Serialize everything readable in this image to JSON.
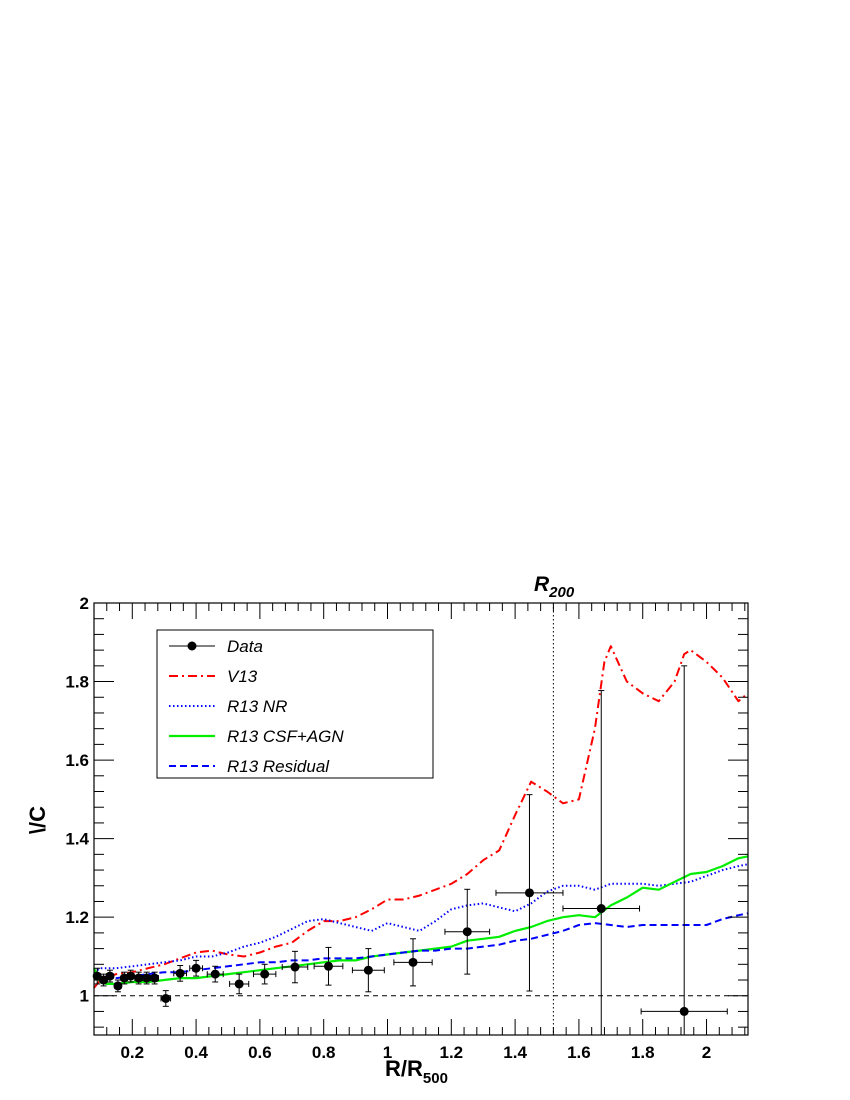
{
  "chart_data": {
    "type": "line",
    "xlabel": {
      "main": "R/R",
      "sub": "500"
    },
    "ylabel": "\\/C",
    "xlim": [
      0.08,
      2.13
    ],
    "ylim": [
      0.9,
      2.0
    ],
    "xticks": [
      "0.2",
      "0.4",
      "0.6",
      "0.8",
      "1",
      "1.2",
      "1.4",
      "1.6",
      "1.8",
      "2"
    ],
    "xtick_values": [
      0.2,
      0.4,
      0.6,
      0.8,
      1.0,
      1.2,
      1.4,
      1.6,
      1.8,
      2.0
    ],
    "yticks": [
      "1",
      "1.2",
      "1.4",
      "1.6",
      "1.8",
      "2"
    ],
    "ytick_values": [
      1.0,
      1.2,
      1.4,
      1.6,
      1.8,
      2.0
    ],
    "reference_line": {
      "y": 1.0,
      "style": "dashed"
    },
    "r200_marker": {
      "x": 1.52,
      "label_main": "R",
      "label_sub": "200"
    },
    "legend": {
      "position": "top-left",
      "entries": [
        {
          "label": "Data",
          "style": "marker-line",
          "color": "#000000"
        },
        {
          "label": "V13",
          "style": "dashdot",
          "color": "#ff0000"
        },
        {
          "label": "R13 NR",
          "style": "dotted",
          "color": "#0000ff"
        },
        {
          "label": "R13 CSF+AGN",
          "style": "solid",
          "color": "#00ee00"
        },
        {
          "label": "R13 Residual",
          "style": "dashed",
          "color": "#0000ff"
        }
      ]
    },
    "data_points": [
      {
        "x": 0.09,
        "y": 1.05,
        "xerr": 0.01,
        "yerr": 0.02
      },
      {
        "x": 0.11,
        "y": 1.04,
        "xerr": 0.01,
        "yerr": 0.015
      },
      {
        "x": 0.13,
        "y": 1.05,
        "xerr": 0.01,
        "yerr": 0.015
      },
      {
        "x": 0.155,
        "y": 1.025,
        "xerr": 0.01,
        "yerr": 0.015
      },
      {
        "x": 0.175,
        "y": 1.045,
        "xerr": 0.01,
        "yerr": 0.015
      },
      {
        "x": 0.195,
        "y": 1.05,
        "xerr": 0.01,
        "yerr": 0.015
      },
      {
        "x": 0.22,
        "y": 1.045,
        "xerr": 0.012,
        "yerr": 0.015
      },
      {
        "x": 0.245,
        "y": 1.045,
        "xerr": 0.012,
        "yerr": 0.015
      },
      {
        "x": 0.27,
        "y": 1.045,
        "xerr": 0.012,
        "yerr": 0.015
      },
      {
        "x": 0.305,
        "y": 0.993,
        "xerr": 0.015,
        "yerr": 0.02
      },
      {
        "x": 0.35,
        "y": 1.057,
        "xerr": 0.02,
        "yerr": 0.02
      },
      {
        "x": 0.4,
        "y": 1.07,
        "xerr": 0.02,
        "yerr": 0.02
      },
      {
        "x": 0.46,
        "y": 1.055,
        "xerr": 0.025,
        "yerr": 0.02
      },
      {
        "x": 0.535,
        "y": 1.03,
        "xerr": 0.03,
        "yerr": 0.025
      },
      {
        "x": 0.615,
        "y": 1.055,
        "xerr": 0.035,
        "yerr": 0.025
      },
      {
        "x": 0.71,
        "y": 1.073,
        "xerr": 0.04,
        "yerr": 0.04
      },
      {
        "x": 0.815,
        "y": 1.075,
        "xerr": 0.045,
        "yerr": 0.048
      },
      {
        "x": 0.94,
        "y": 1.065,
        "xerr": 0.05,
        "yerr": 0.055
      },
      {
        "x": 1.08,
        "y": 1.085,
        "xerr": 0.06,
        "yerr": 0.06
      },
      {
        "x": 1.25,
        "y": 1.163,
        "xerr": 0.07,
        "yerr": 0.108
      },
      {
        "x": 1.445,
        "y": 1.262,
        "xerr": 0.105,
        "yerr": 0.25
      },
      {
        "x": 1.67,
        "y": 1.222,
        "xerr": 0.12,
        "yerr": 0.555
      },
      {
        "x": 1.93,
        "y": 0.96,
        "xerr": 0.135,
        "yerr": 0.88
      }
    ],
    "series": [
      {
        "name": "V13",
        "x": [
          0.08,
          0.1,
          0.15,
          0.2,
          0.25,
          0.3,
          0.35,
          0.4,
          0.45,
          0.5,
          0.55,
          0.6,
          0.65,
          0.7,
          0.75,
          0.8,
          0.85,
          0.9,
          0.95,
          1.0,
          1.05,
          1.1,
          1.15,
          1.2,
          1.25,
          1.3,
          1.35,
          1.4,
          1.45,
          1.5,
          1.55,
          1.6,
          1.65,
          1.68,
          1.7,
          1.75,
          1.8,
          1.85,
          1.9,
          1.93,
          1.95,
          2.0,
          2.05,
          2.1,
          2.13
        ],
        "y": [
          1.02,
          1.04,
          1.055,
          1.06,
          1.07,
          1.08,
          1.095,
          1.11,
          1.115,
          1.105,
          1.1,
          1.11,
          1.125,
          1.135,
          1.165,
          1.19,
          1.19,
          1.2,
          1.22,
          1.245,
          1.245,
          1.255,
          1.27,
          1.285,
          1.31,
          1.345,
          1.37,
          1.46,
          1.545,
          1.52,
          1.49,
          1.5,
          1.68,
          1.85,
          1.89,
          1.8,
          1.77,
          1.75,
          1.8,
          1.87,
          1.88,
          1.85,
          1.81,
          1.75,
          1.77
        ]
      },
      {
        "name": "R13 NR",
        "x": [
          0.08,
          0.1,
          0.15,
          0.2,
          0.25,
          0.3,
          0.35,
          0.4,
          0.45,
          0.5,
          0.55,
          0.6,
          0.65,
          0.7,
          0.75,
          0.8,
          0.85,
          0.9,
          0.95,
          1.0,
          1.05,
          1.1,
          1.15,
          1.2,
          1.25,
          1.3,
          1.35,
          1.4,
          1.45,
          1.5,
          1.55,
          1.6,
          1.65,
          1.7,
          1.75,
          1.8,
          1.85,
          1.9,
          1.95,
          2.0,
          2.05,
          2.1,
          2.13
        ],
        "y": [
          1.06,
          1.07,
          1.07,
          1.075,
          1.08,
          1.085,
          1.09,
          1.1,
          1.1,
          1.11,
          1.125,
          1.135,
          1.15,
          1.17,
          1.19,
          1.195,
          1.185,
          1.175,
          1.165,
          1.185,
          1.175,
          1.165,
          1.19,
          1.22,
          1.23,
          1.235,
          1.225,
          1.215,
          1.235,
          1.265,
          1.28,
          1.28,
          1.27,
          1.285,
          1.285,
          1.285,
          1.28,
          1.285,
          1.29,
          1.305,
          1.32,
          1.33,
          1.335
        ]
      },
      {
        "name": "R13 CSF+AGN",
        "x": [
          0.08,
          0.1,
          0.12,
          0.15,
          0.2,
          0.25,
          0.3,
          0.35,
          0.4,
          0.45,
          0.5,
          0.55,
          0.6,
          0.65,
          0.7,
          0.75,
          0.8,
          0.85,
          0.9,
          0.95,
          1.0,
          1.05,
          1.1,
          1.15,
          1.2,
          1.25,
          1.3,
          1.35,
          1.4,
          1.45,
          1.5,
          1.55,
          1.6,
          1.65,
          1.7,
          1.75,
          1.8,
          1.85,
          1.9,
          1.95,
          2.0,
          2.05,
          2.1,
          2.13
        ],
        "y": [
          1.07,
          1.035,
          1.03,
          1.03,
          1.035,
          1.035,
          1.04,
          1.045,
          1.045,
          1.05,
          1.055,
          1.06,
          1.065,
          1.07,
          1.075,
          1.08,
          1.085,
          1.09,
          1.09,
          1.1,
          1.105,
          1.11,
          1.115,
          1.12,
          1.125,
          1.14,
          1.145,
          1.15,
          1.165,
          1.175,
          1.19,
          1.2,
          1.205,
          1.2,
          1.23,
          1.25,
          1.275,
          1.27,
          1.29,
          1.31,
          1.315,
          1.33,
          1.35,
          1.355
        ]
      },
      {
        "name": "R13 Residual",
        "x": [
          0.08,
          0.1,
          0.15,
          0.2,
          0.25,
          0.3,
          0.35,
          0.4,
          0.45,
          0.5,
          0.55,
          0.6,
          0.65,
          0.7,
          0.75,
          0.8,
          0.85,
          0.9,
          0.95,
          1.0,
          1.05,
          1.1,
          1.15,
          1.2,
          1.25,
          1.3,
          1.35,
          1.4,
          1.45,
          1.5,
          1.55,
          1.6,
          1.65,
          1.7,
          1.75,
          1.8,
          1.85,
          1.9,
          1.95,
          2.0,
          2.05,
          2.1,
          2.13
        ],
        "y": [
          1.05,
          1.045,
          1.045,
          1.05,
          1.055,
          1.06,
          1.06,
          1.065,
          1.07,
          1.075,
          1.08,
          1.085,
          1.085,
          1.09,
          1.09,
          1.095,
          1.095,
          1.095,
          1.1,
          1.105,
          1.11,
          1.115,
          1.115,
          1.12,
          1.12,
          1.125,
          1.13,
          1.14,
          1.145,
          1.155,
          1.165,
          1.18,
          1.185,
          1.18,
          1.175,
          1.18,
          1.18,
          1.18,
          1.18,
          1.18,
          1.195,
          1.205,
          1.21
        ]
      }
    ]
  }
}
